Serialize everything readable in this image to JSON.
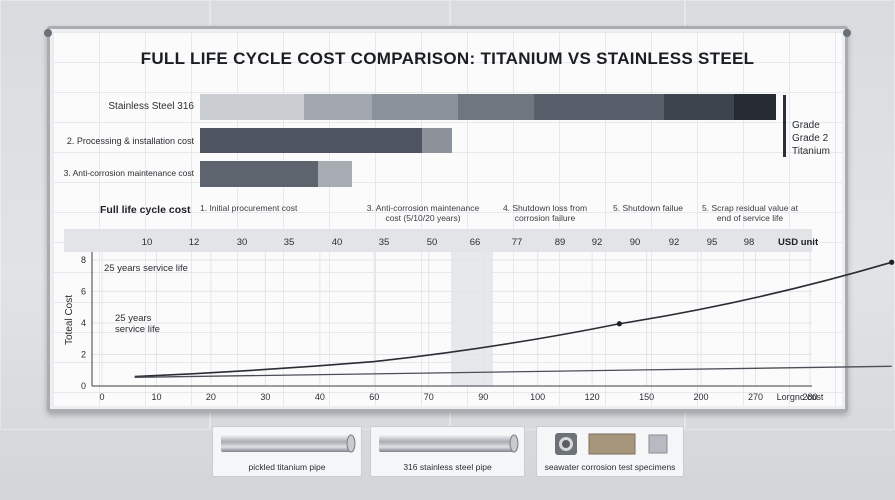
{
  "title": "FULL LIFE CYCLE COST COMPARISON: TITANIUM VS STAINLESS STEEL",
  "bars": [
    {
      "label": "Stainless Steel 316",
      "segments": [
        "#c9ccd1",
        "#a3a8b0",
        "#8b919a",
        "#6f7680",
        "#585f6a",
        "#3e444e",
        "#262b33"
      ]
    },
    {
      "label": "2. Processing & installation cost",
      "segments": [
        "#4e5560",
        "#8d929a"
      ]
    },
    {
      "label": "3. Anti-corrosion maintenance cost",
      "segments": [
        "#5e646e",
        "#a7abb2"
      ]
    }
  ],
  "legend": {
    "line1": "Grade",
    "line2": "Grade 2",
    "line3": "Titanium"
  },
  "cost_section_label": "Full life cycle cost",
  "cost_categories": [
    "1. Initial procurement cost",
    "3. Anti-corrosion maintenance cost (5/10/20 years)",
    "4. Shutdown loss from corrosion failure",
    "5. Shutdown failue",
    "5. Scrap residual value at end of service life"
  ],
  "band_values": [
    "10",
    "12",
    "30",
    "35",
    "40",
    "35",
    "50",
    "66",
    "77",
    "89",
    "92",
    "90",
    "92",
    "95",
    "98"
  ],
  "band_unit": "USD unit",
  "chart_data": {
    "type": "line",
    "ylabel": "Toteal Cost",
    "xlabel": "Loгgnc cost",
    "x_ticks": [
      "0",
      "10",
      "20",
      "30",
      "40",
      "60",
      "70",
      "90",
      "100",
      "120",
      "150",
      "200",
      "270",
      "280"
    ],
    "y_ticks": [
      "0",
      "2",
      "4",
      "6",
      "8"
    ],
    "ylim": [
      0,
      8.5
    ],
    "series": [
      {
        "name": "",
        "color": "#2a2d33",
        "points": [
          [
            0.6,
            0.6
          ],
          [
            5,
            1.55
          ],
          [
            9.5,
            3.95
          ],
          [
            14.5,
            7.85
          ]
        ],
        "markers": [
          2,
          3
        ]
      },
      {
        "name": "",
        "color": "#4a4f57",
        "points": [
          [
            0.6,
            0.55
          ],
          [
            14.5,
            1.25
          ]
        ],
        "markers": []
      }
    ],
    "annotations": [
      "25 years service life",
      "25 years\nservice life"
    ],
    "grid": true
  },
  "specimens": {
    "pipe1_caption": "pickled titanium pipe",
    "pipe2_caption": "316 stainless steel pipe",
    "specimen_caption": "seawater corrosion test specimens"
  }
}
